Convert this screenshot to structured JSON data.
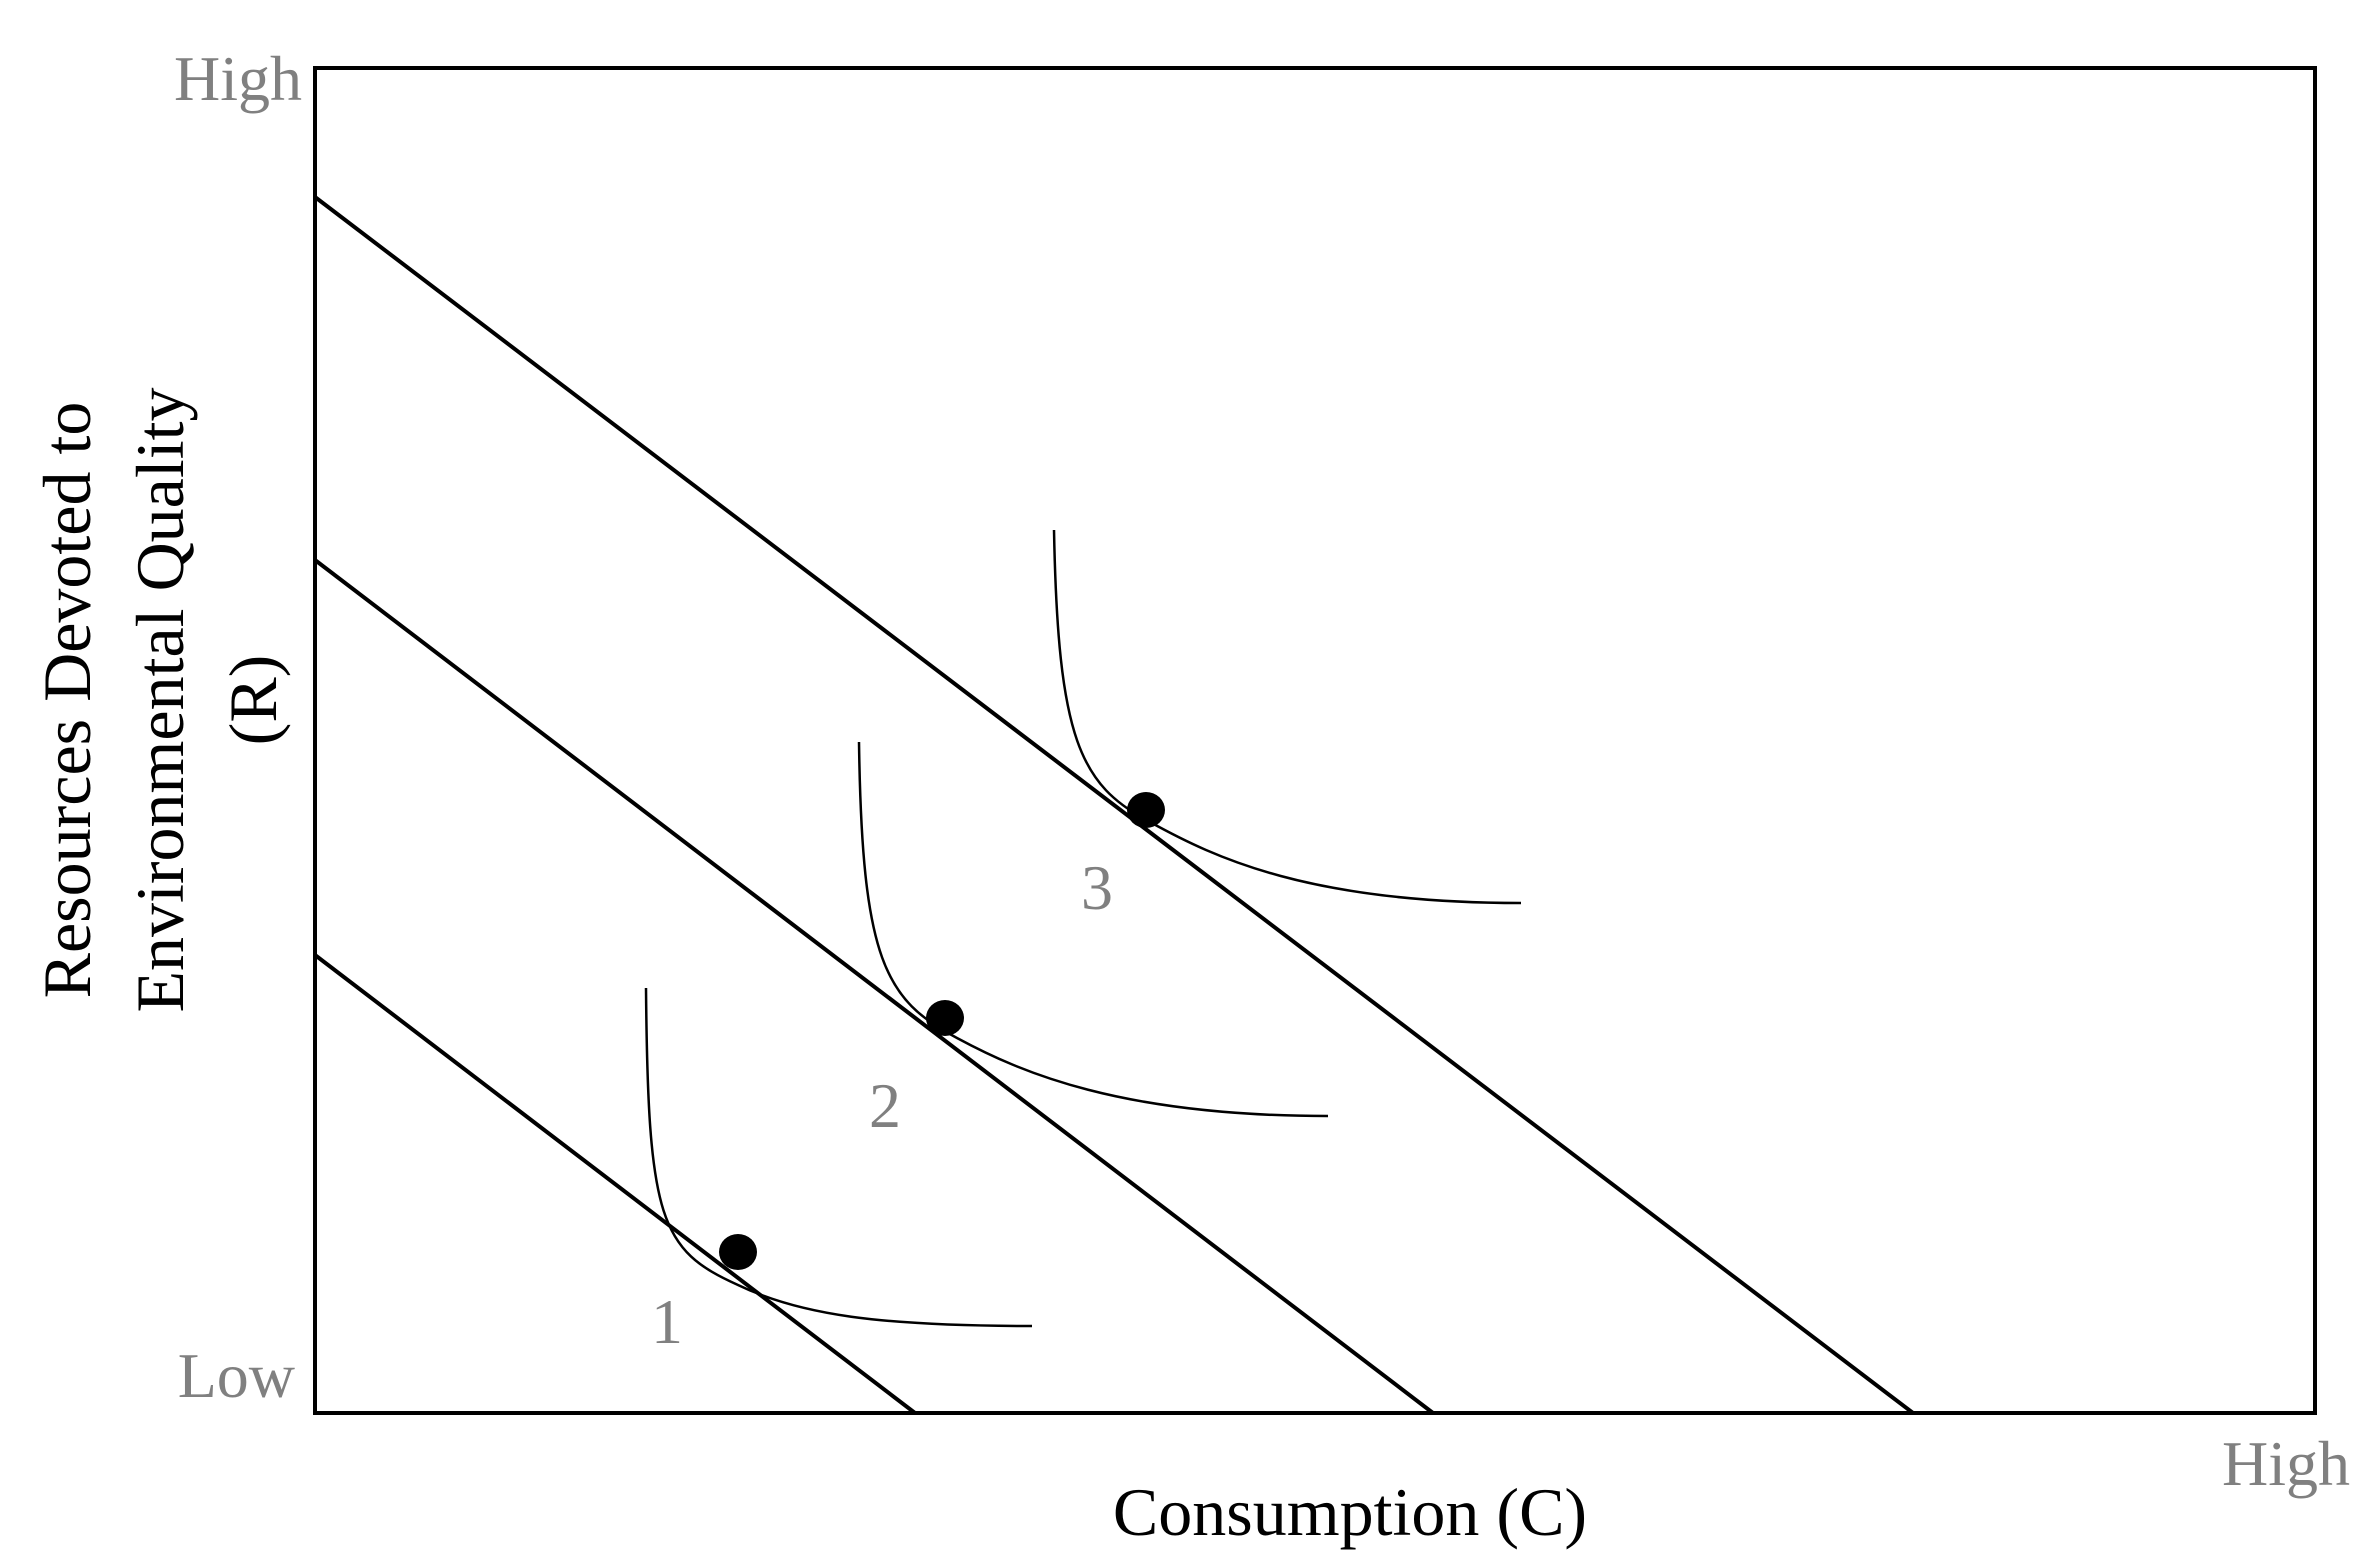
{
  "diagram": {
    "y_axis": {
      "label_lines": [
        "Resources Devoted to",
        "Environmental Quality",
        "(R)"
      ],
      "top_label": "High",
      "bottom_label": "Low"
    },
    "x_axis": {
      "label": "Consumption (C)",
      "right_label": "High"
    },
    "budget_lines": [
      {
        "id": "budget-line-1"
      },
      {
        "id": "budget-line-2"
      },
      {
        "id": "budget-line-3"
      }
    ],
    "indifference_curves": [
      {
        "id": "indifference-curve-1",
        "label": "1"
      },
      {
        "id": "indifference-curve-2",
        "label": "2"
      },
      {
        "id": "indifference-curve-3",
        "label": "3"
      }
    ],
    "colors": {
      "line": "#000000",
      "label_gray": "#808080"
    }
  }
}
